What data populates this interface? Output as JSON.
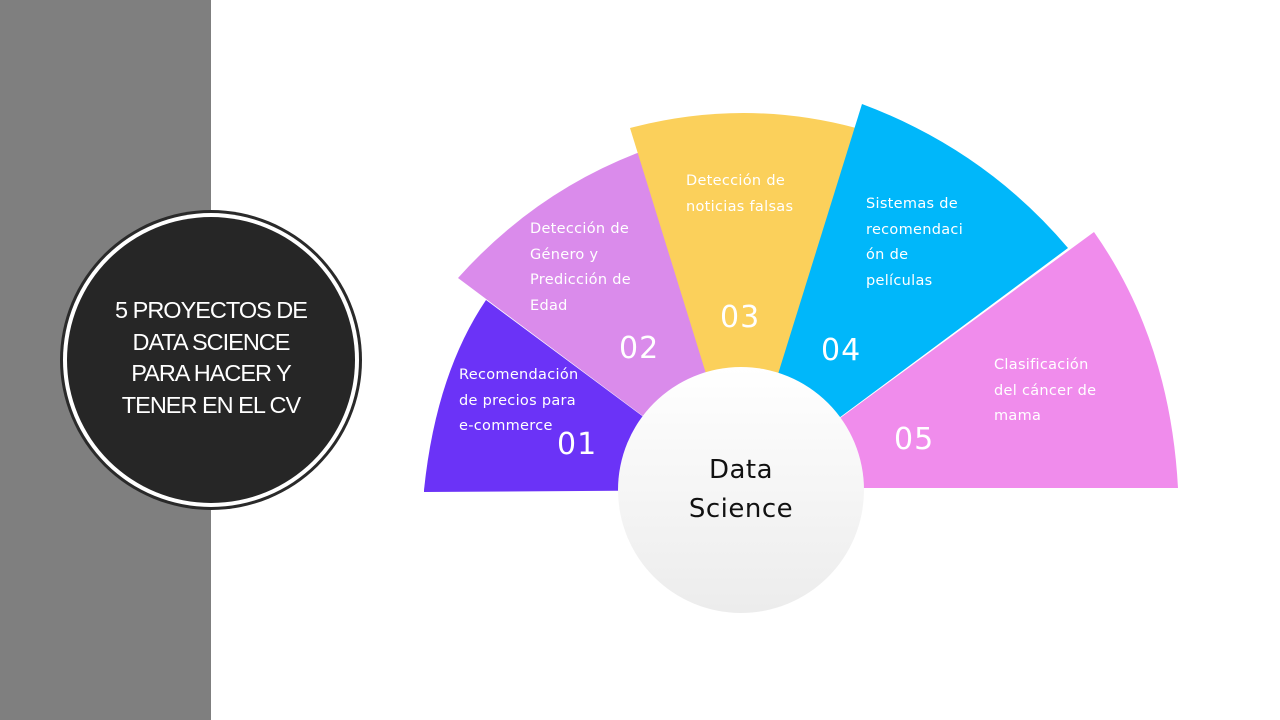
{
  "title": "5 PROYECTOS DE DATA SCIENCE PARA HACER Y TENER EN EL CV",
  "hub": "Data\nScience",
  "segments": [
    {
      "num": "01",
      "label": "Recomendación\nde precios para\ne-commerce",
      "color": "#6b33f7"
    },
    {
      "num": "02",
      "label": "Detección de\nGénero y\nPredicción de\nEdad",
      "color": "#da8beb"
    },
    {
      "num": "03",
      "label": "Detección de\nnoticias falsas",
      "color": "#fbd05b"
    },
    {
      "num": "04",
      "label": "Sistemas de\nrecomendaci\nón de\npelículas",
      "color": "#00b7fa"
    },
    {
      "num": "05",
      "label": "Clasificación\ndel cáncer de\nmama",
      "color": "#f08cec"
    }
  ]
}
